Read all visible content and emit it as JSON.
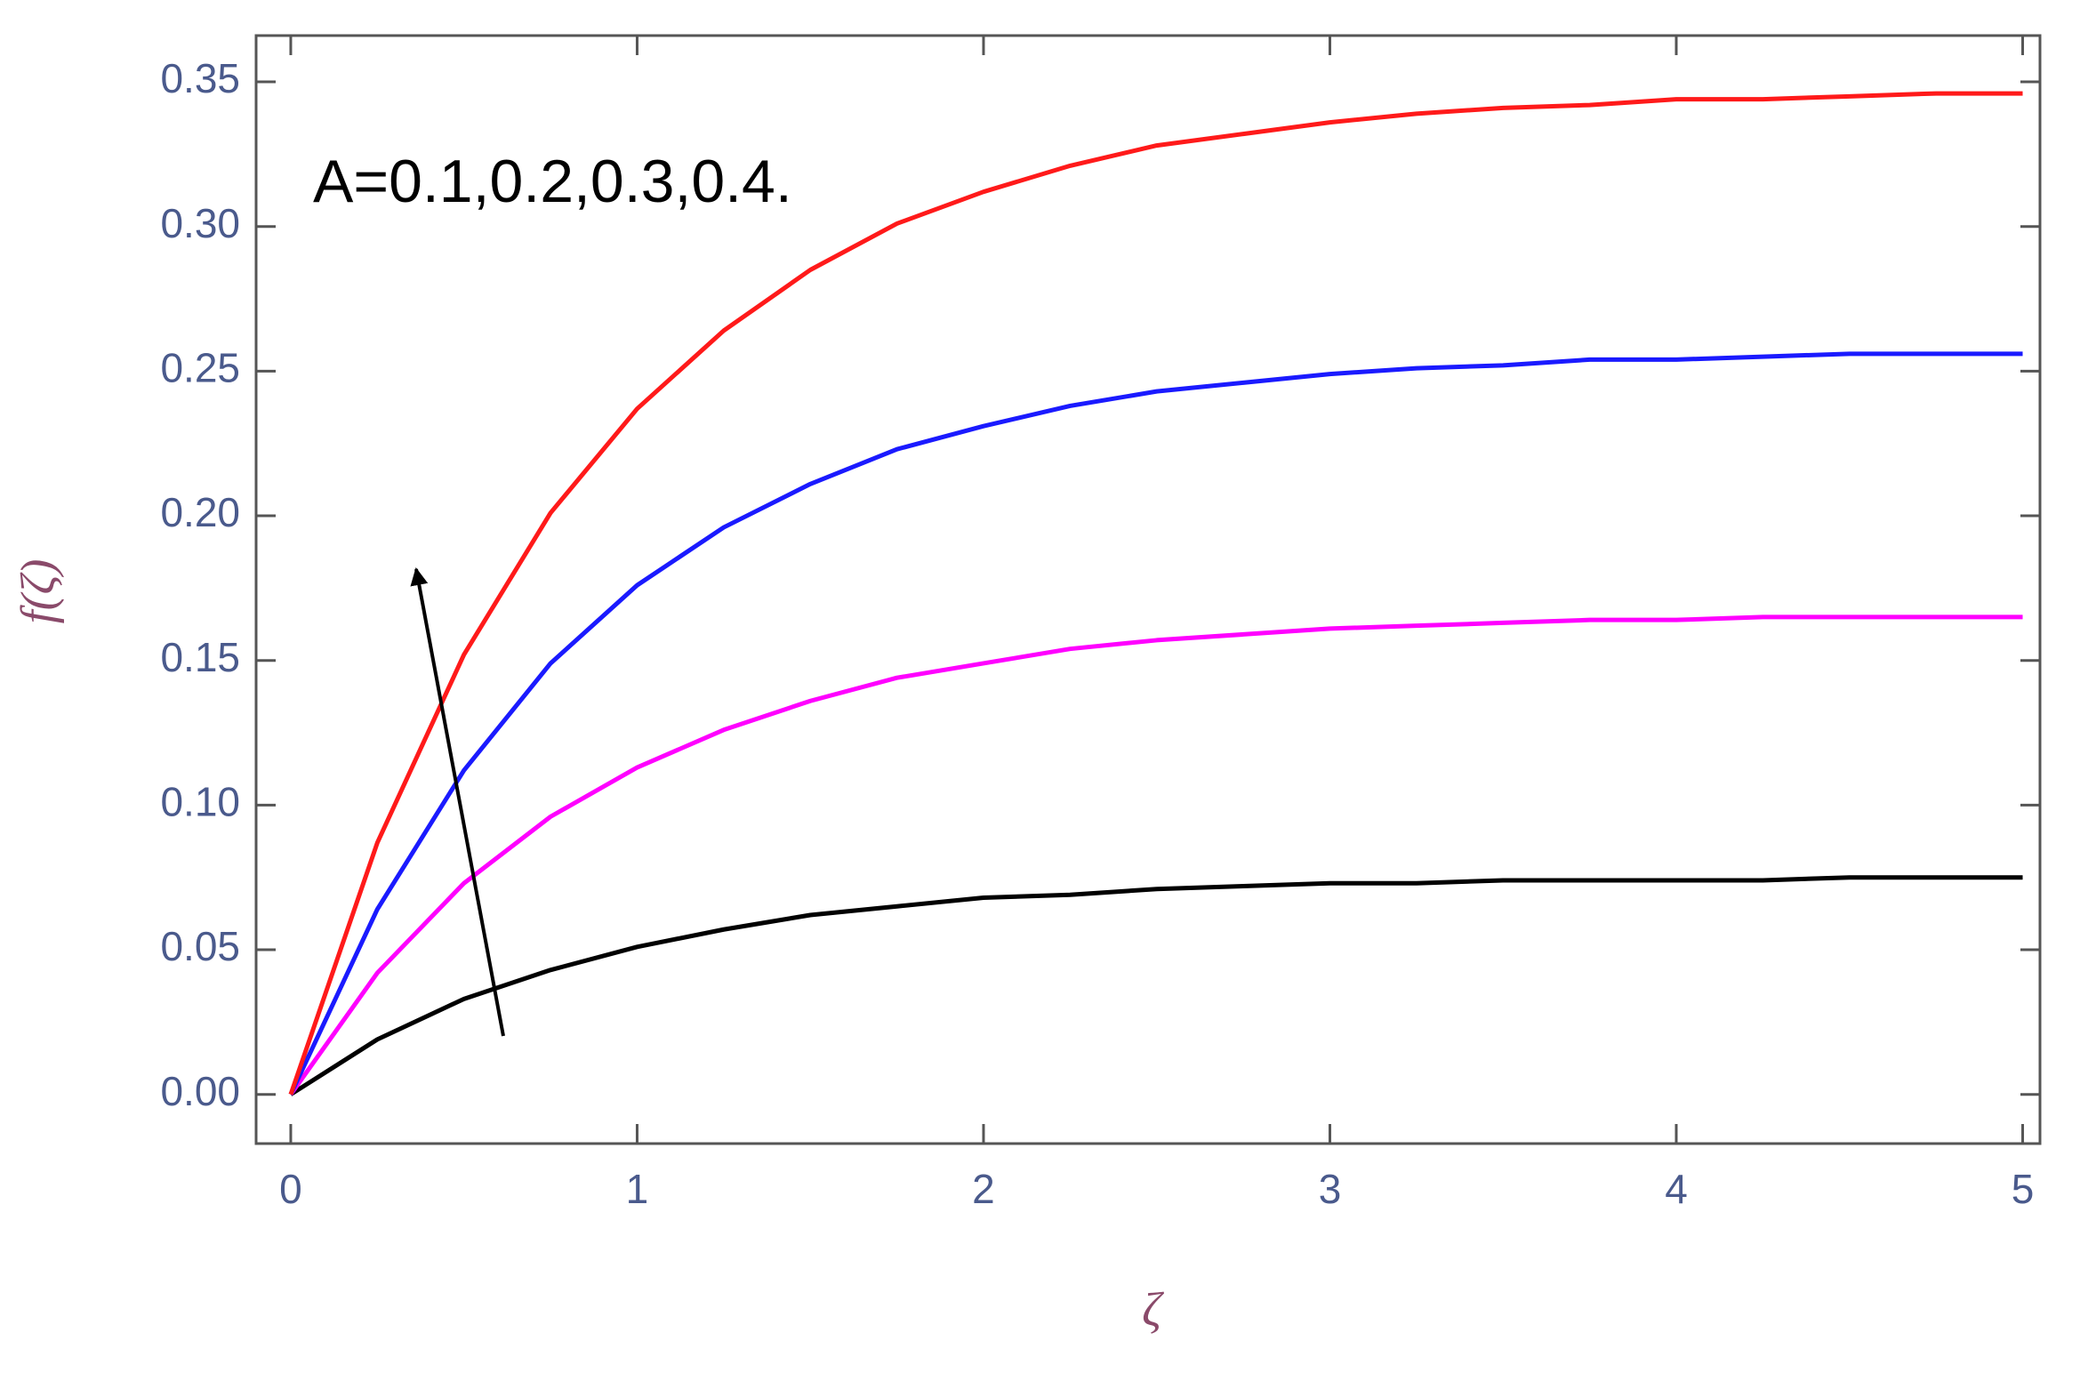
{
  "chart_data": {
    "type": "line",
    "x_label": "ζ",
    "y_label": "f(ζ)",
    "annotation": "A=0.1,0.2,0.3,0.4.",
    "x": [
      0,
      0.25,
      0.5,
      0.75,
      1,
      1.25,
      1.5,
      1.75,
      2,
      2.25,
      2.5,
      2.75,
      3,
      3.25,
      3.5,
      3.75,
      4,
      4.25,
      4.5,
      4.75,
      5
    ],
    "series": [
      {
        "color": "#000000",
        "values": [
          0,
          0.019,
          0.033,
          0.043,
          0.051,
          0.057,
          0.062,
          0.065,
          0.068,
          0.069,
          0.071,
          0.072,
          0.073,
          0.073,
          0.074,
          0.074,
          0.074,
          0.074,
          0.075,
          0.075,
          0.075
        ]
      },
      {
        "color": "#ff00ff",
        "values": [
          0,
          0.042,
          0.073,
          0.096,
          0.113,
          0.126,
          0.136,
          0.144,
          0.149,
          0.154,
          0.157,
          0.159,
          0.161,
          0.162,
          0.163,
          0.164,
          0.164,
          0.165,
          0.165,
          0.165,
          0.165
        ]
      },
      {
        "color": "#1a1aff",
        "values": [
          0,
          0.064,
          0.112,
          0.149,
          0.176,
          0.196,
          0.211,
          0.223,
          0.231,
          0.238,
          0.243,
          0.246,
          0.249,
          0.251,
          0.252,
          0.254,
          0.254,
          0.255,
          0.256,
          0.256,
          0.256
        ]
      },
      {
        "color": "#ff1a1a",
        "values": [
          0,
          0.087,
          0.152,
          0.201,
          0.237,
          0.264,
          0.285,
          0.301,
          0.312,
          0.321,
          0.328,
          0.332,
          0.336,
          0.339,
          0.341,
          0.342,
          0.344,
          0.344,
          0.345,
          0.346,
          0.346
        ]
      }
    ],
    "xlim": [
      -0.1,
      5.05
    ],
    "ylim": [
      -0.017,
      0.366
    ],
    "xticks": [
      0,
      1,
      2,
      3,
      4,
      5
    ],
    "yticks": [
      {
        "value": 0,
        "label": "0.00"
      },
      {
        "value": 0.05,
        "label": "0.05"
      },
      {
        "value": 0.1,
        "label": "0.10"
      },
      {
        "value": 0.15,
        "label": "0.15"
      },
      {
        "value": 0.2,
        "label": "0.20"
      },
      {
        "value": 0.25,
        "label": "0.25"
      },
      {
        "value": 0.3,
        "label": "0.30"
      },
      {
        "value": 0.35,
        "label": "0.35"
      }
    ],
    "grid": false
  }
}
